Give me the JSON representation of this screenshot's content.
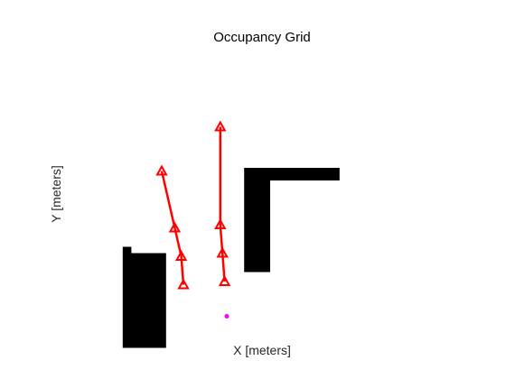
{
  "chart_data": {
    "type": "scatter",
    "title": "Occupancy Grid",
    "xlabel": "X [meters]",
    "ylabel": "Y [meters]",
    "xlim": [
      0,
      10
    ],
    "ylim": [
      0,
      10
    ],
    "grid": false,
    "axes_visible": false,
    "obstacle_color": "#000000",
    "path_color": "#ff0000",
    "point_color": "#ff00ff",
    "obstacles": [
      {
        "name": "left-block",
        "x": [
          1.6,
          2.6
        ],
        "y": [
          0.5,
          3.5
        ]
      },
      {
        "name": "left-block-top-notch",
        "x": [
          1.6,
          1.8
        ],
        "y": [
          3.5,
          3.7
        ]
      },
      {
        "name": "right-vertical-wall",
        "x": [
          4.4,
          5.0
        ],
        "y": [
          2.9,
          5.8
        ]
      },
      {
        "name": "right-horizontal-wall",
        "x": [
          4.4,
          6.6
        ],
        "y": [
          5.8,
          6.2
        ]
      }
    ],
    "series": [
      {
        "x": [
          2.5,
          2.8,
          2.95,
          3.0
        ],
        "y": [
          6.1,
          4.3,
          3.4,
          2.5
        ],
        "marker": "triangle"
      },
      {
        "x": [
          3.85,
          3.85,
          3.9,
          3.95
        ],
        "y": [
          7.5,
          4.4,
          3.5,
          2.6
        ],
        "marker": "triangle"
      }
    ],
    "points": [
      {
        "x": 4.0,
        "y": 1.5,
        "marker": "dot"
      }
    ]
  }
}
